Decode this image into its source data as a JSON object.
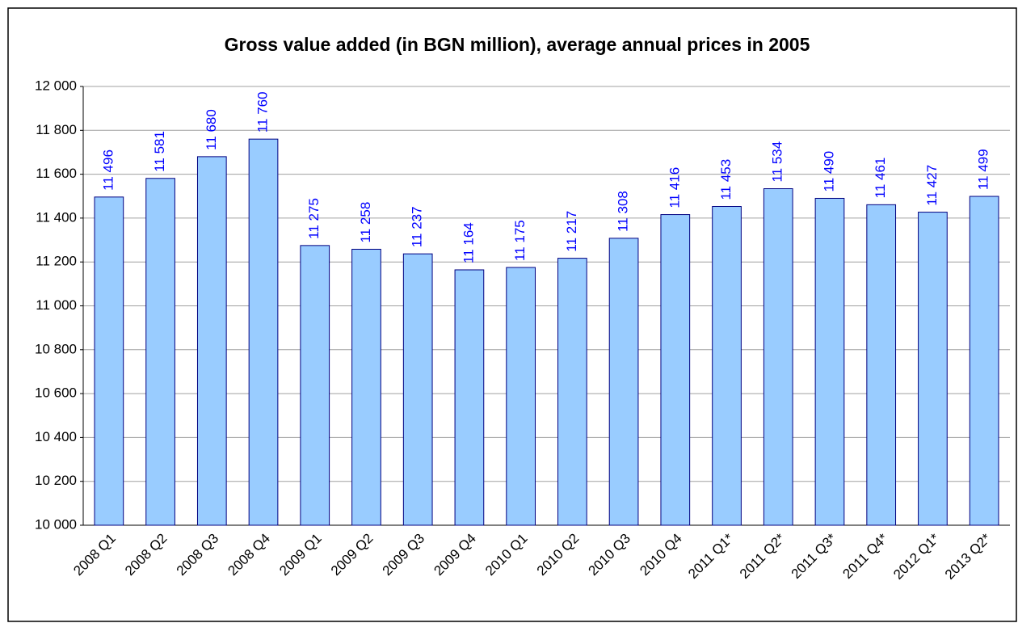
{
  "chart_data": {
    "type": "bar",
    "title": "Gross value added (in BGN million), average annual prices in 2005",
    "categories": [
      "2008 Q1",
      "2008 Q2",
      "2008 Q3",
      "2008 Q4",
      "2009 Q1",
      "2009 Q2",
      "2009 Q3",
      "2009 Q4",
      "2010 Q1",
      "2010 Q2",
      "2010 Q3",
      "2010 Q4",
      "2011 Q1*",
      "2011 Q2*",
      "2011 Q3*",
      "2011 Q4*",
      "2012 Q1*",
      "2013 Q2*"
    ],
    "values": [
      11496,
      11581,
      11680,
      11760,
      11275,
      11258,
      11237,
      11164,
      11175,
      11217,
      11308,
      11416,
      11453,
      11534,
      11490,
      11461,
      11427,
      11499
    ],
    "value_labels": [
      "11 496",
      "11 581",
      "11 680",
      "11 760",
      "11 275",
      "11 258",
      "11 237",
      "11 164",
      "11 175",
      "11 217",
      "11 308",
      "11 416",
      "11 453",
      "11 534",
      "11 490",
      "11 461",
      "11 427",
      "11 499"
    ],
    "color": "#99ccff",
    "ylim": [
      10000,
      12000
    ],
    "yticks": [
      {
        "value": 10000,
        "label": "10 000"
      },
      {
        "value": 10200,
        "label": "10 200"
      },
      {
        "value": 10400,
        "label": "10 400"
      },
      {
        "value": 10600,
        "label": "10 600"
      },
      {
        "value": 10800,
        "label": "10 800"
      },
      {
        "value": 11000,
        "label": "11 000"
      },
      {
        "value": 11200,
        "label": "11 200"
      },
      {
        "value": 11400,
        "label": "11 400"
      },
      {
        "value": 11600,
        "label": "11 600"
      },
      {
        "value": 11800,
        "label": "11 800"
      },
      {
        "value": 12000,
        "label": "12 000"
      }
    ],
    "grid": true
  }
}
